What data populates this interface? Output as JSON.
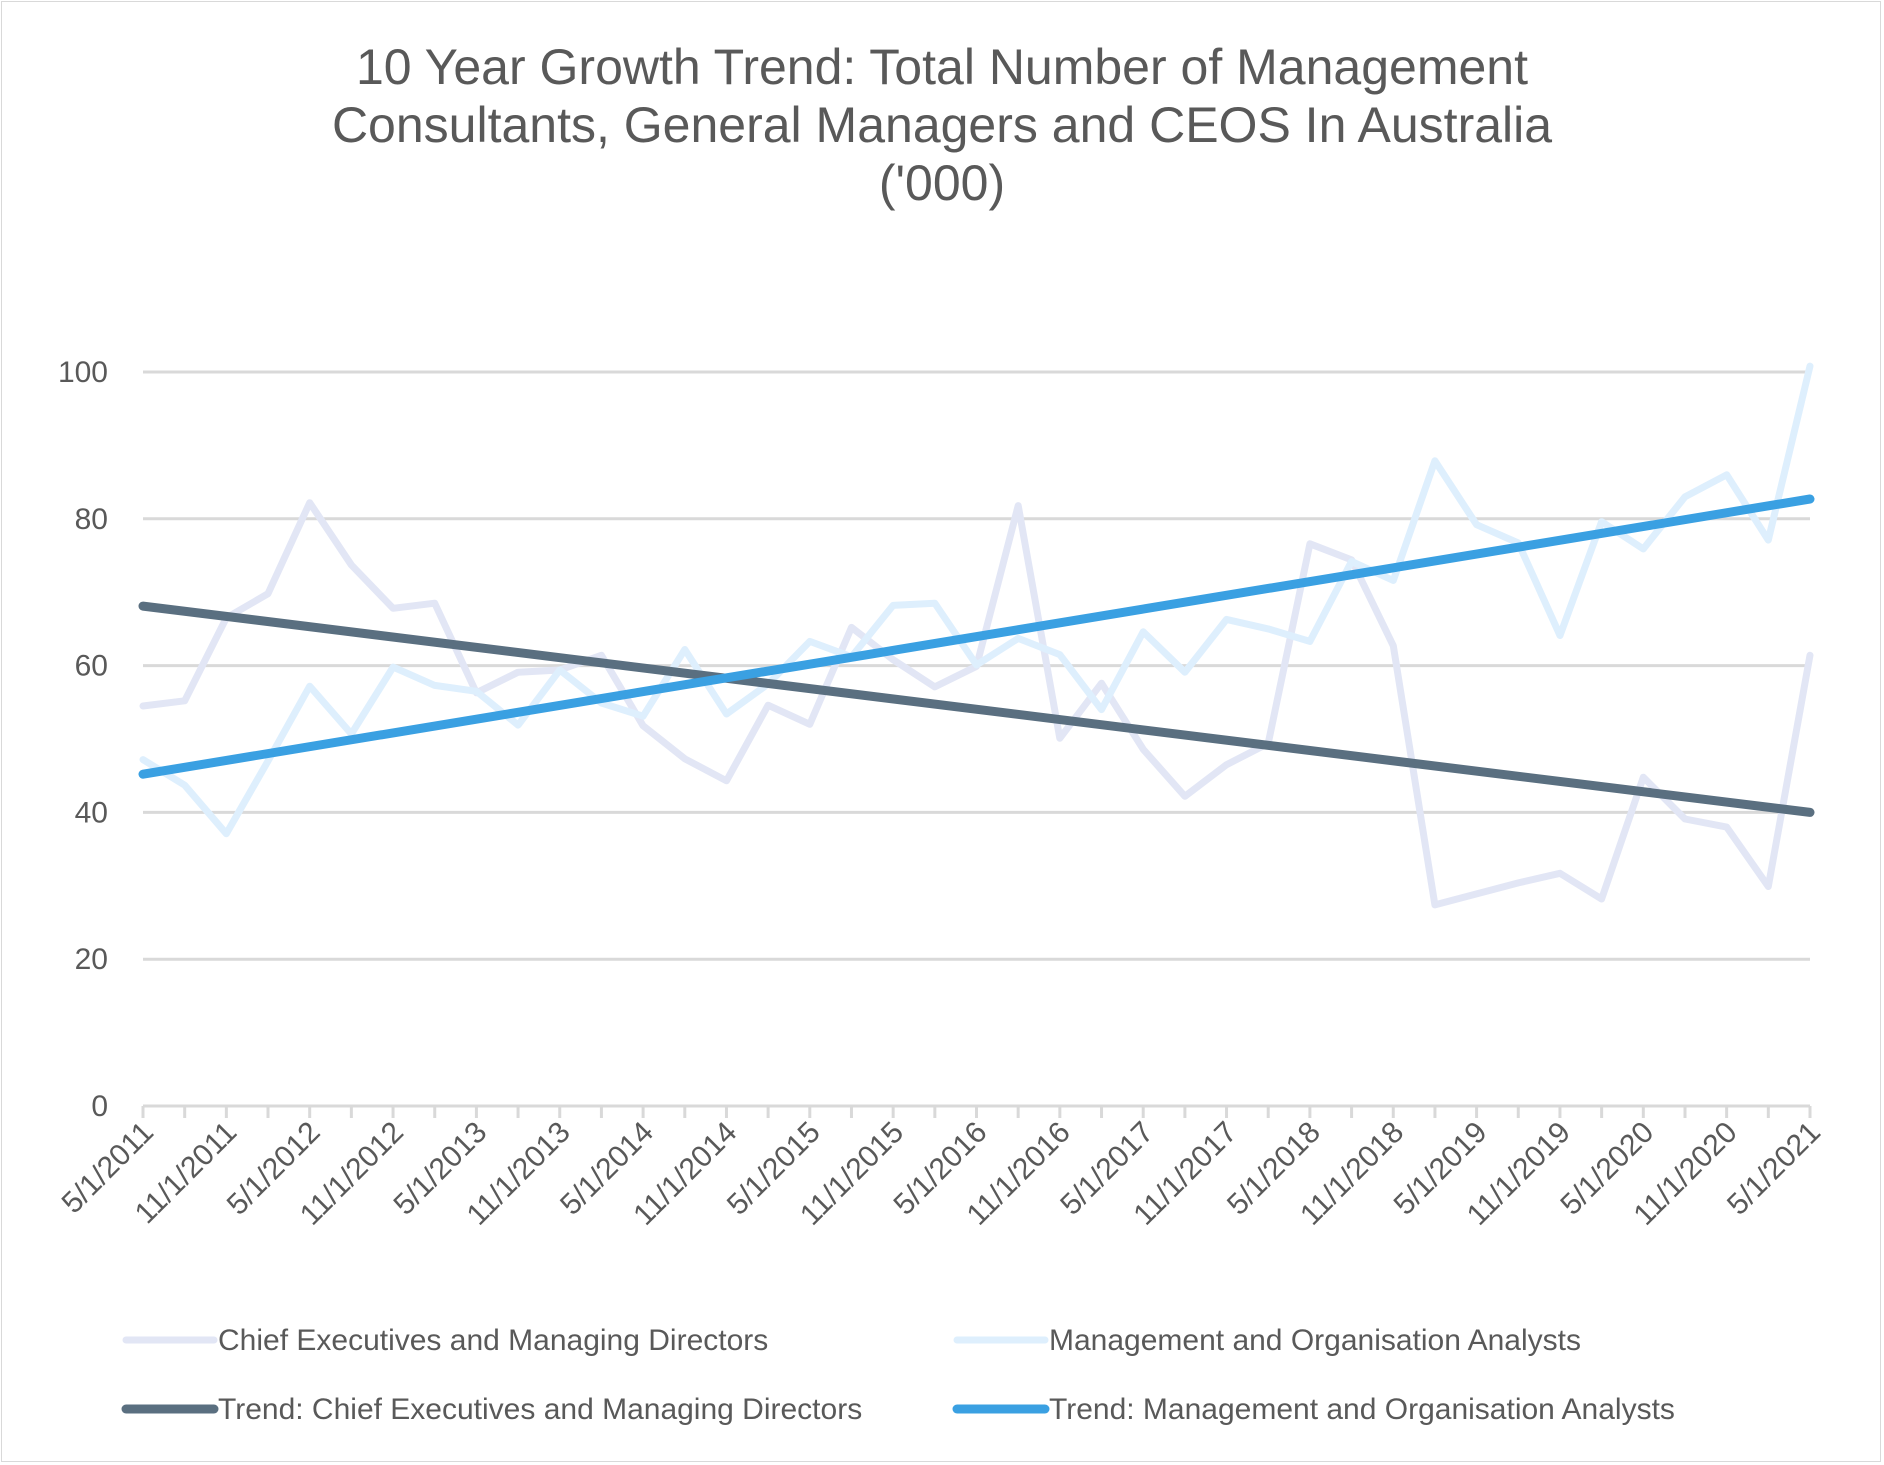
{
  "chart_data": {
    "type": "line",
    "title_lines": [
      "10 Year Growth Trend: Total Number of Management",
      "Consultants, General Managers and CEOS In Australia",
      "('000)"
    ],
    "xlabel": "",
    "ylabel": "",
    "ylim": [
      0,
      100
    ],
    "yticks": [
      "0",
      "20",
      "40",
      "60",
      "80",
      "100"
    ],
    "grid": true,
    "legend_position": "bottom",
    "x_tick_labels": [
      "5/1/2011",
      "11/1/2011",
      "5/1/2012",
      "11/1/2012",
      "5/1/2013",
      "11/1/2013",
      "5/1/2014",
      "11/1/2014",
      "5/1/2015",
      "11/1/2015",
      "5/1/2016",
      "11/1/2016",
      "5/1/2017",
      "11/1/2017",
      "5/1/2018",
      "11/1/2018",
      "5/1/2019",
      "11/1/2019",
      "5/1/2020",
      "11/1/2020",
      "5/1/2021"
    ],
    "x_points": 41,
    "series": [
      {
        "name": "Chief Executives and Managing Directors",
        "color": "#e2e6f5",
        "width": 7,
        "values": [
          54.5,
          55.2,
          66.5,
          69.8,
          82.2,
          73.7,
          67.8,
          68.5,
          56.3,
          59.1,
          59.4,
          61.4,
          51.8,
          47.3,
          44.3,
          54.6,
          52.0,
          65.2,
          60.8,
          57.1,
          59.9,
          81.8,
          50.1,
          57.6,
          48.6,
          42.2,
          46.5,
          49.4,
          76.6,
          74.4,
          62.7,
          27.4,
          28.9,
          30.4,
          31.7,
          28.2,
          44.8,
          39.1,
          38.0,
          29.9,
          61.4
        ]
      },
      {
        "name": "Management and Organisation Analysts",
        "color": "#deeffd",
        "width": 7,
        "values": [
          47.2,
          43.7,
          37.1,
          47.0,
          57.2,
          50.7,
          59.8,
          57.3,
          56.5,
          51.9,
          59.4,
          54.9,
          53.1,
          62.2,
          53.4,
          57.5,
          63.3,
          61.2,
          68.2,
          68.5,
          60.1,
          63.7,
          61.5,
          54.0,
          64.6,
          59.1,
          66.3,
          65.0,
          63.3,
          74.2,
          71.6,
          87.9,
          79.2,
          76.7,
          64.1,
          79.6,
          75.9,
          83.0,
          86.0,
          77.1,
          100.8
        ]
      },
      {
        "name": "Trend: Chief Executives and Managing Directors",
        "color": "#5a6f80",
        "width": 9,
        "values": [
          68.1,
          40.0
        ]
      },
      {
        "name": "Trend: Management and Organisation Analysts",
        "color": "#3aa0e2",
        "width": 9,
        "values": [
          45.2,
          82.7
        ]
      }
    ]
  }
}
